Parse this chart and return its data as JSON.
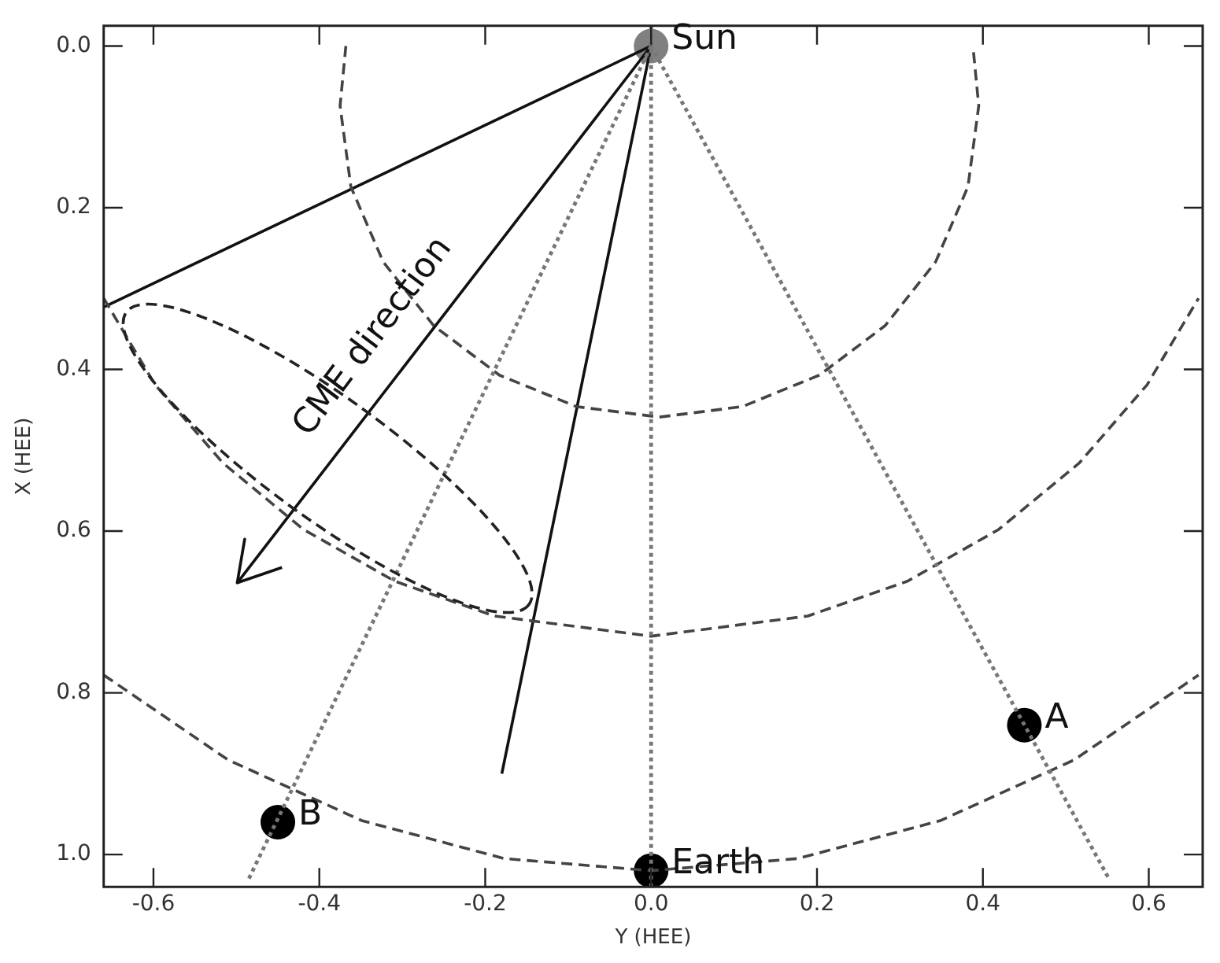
{
  "chart_data": {
    "type": "scatter",
    "xlabel": "Y (HEE)",
    "ylabel": "X (HEE)",
    "xlim": [
      -0.66,
      0.665
    ],
    "ylim": [
      1.04,
      -0.025
    ],
    "xticks": [
      -0.6,
      -0.4,
      -0.2,
      {
        "value": 0,
        "label": "0.0"
      },
      0.2,
      0.4,
      0.6
    ],
    "yticks": [
      {
        "value": 0,
        "label": "0.0"
      },
      0.2,
      0.4,
      0.6,
      0.8,
      {
        "value": 1,
        "label": "1.0"
      }
    ],
    "grid": false,
    "ref_lines": [
      {
        "axis": "x",
        "value": 0,
        "color": "#777777",
        "line_style": "dotted"
      }
    ],
    "legend": false,
    "marker": "circle",
    "annotations": [
      "CME direction"
    ],
    "series": [
      {
        "type": "line",
        "color": "#777777",
        "line_style": "dotted",
        "marker": "none",
        "x": [
          0,
          0.552
        ],
        "values": [
          0,
          1.03
        ]
      },
      {
        "type": "line",
        "color": "#777777",
        "line_style": "dotted",
        "marker": "none",
        "x": [
          0,
          -0.485
        ],
        "values": [
          0,
          1.03
        ]
      },
      {
        "type": "line",
        "color": "#444444",
        "line_style": "dashed",
        "marker": "none",
        "x": [
          -0.368,
          -0.375,
          -0.362,
          -0.323,
          -0.262,
          -0.183,
          -0.09,
          0.01,
          0.11,
          0.203,
          0.282,
          0.343,
          0.382,
          0.395,
          0.388
        ],
        "values": [
          0,
          0.074,
          0.174,
          0.267,
          0.346,
          0.407,
          0.446,
          0.459,
          0.446,
          0.407,
          0.346,
          0.267,
          0.174,
          0.074,
          0
        ]
      },
      {
        "type": "line",
        "color": "#444444",
        "line_style": "dashed",
        "marker": "none",
        "x": [
          -0.66,
          -0.598,
          -0.516,
          -0.419,
          -0.309,
          -0.189,
          0,
          0.189,
          0.309,
          0.419,
          0.516,
          0.598,
          0.66
        ],
        "values": [
          0.312,
          0.419,
          0.516,
          0.598,
          0.662,
          0.705,
          0.73,
          0.705,
          0.662,
          0.598,
          0.516,
          0.419,
          0.312
        ]
      },
      {
        "type": "line",
        "color": "#444444",
        "line_style": "dashed",
        "marker": "none",
        "x": [
          -0.66,
          -0.51,
          -0.349,
          -0.177,
          0,
          0.177,
          0.349,
          0.51,
          0.66
        ],
        "values": [
          0.778,
          0.883,
          0.958,
          1.005,
          1.02,
          1.005,
          0.958,
          0.883,
          0.778
        ]
      },
      {
        "type": "line",
        "color": "#111111",
        "line_style": "solid",
        "marker": "none",
        "x": [
          0,
          -0.66
        ],
        "values": [
          0,
          0.323
        ]
      },
      {
        "type": "line",
        "color": "#111111",
        "line_style": "solid",
        "marker": "none",
        "x": [
          0,
          -0.18
        ],
        "values": [
          0,
          0.9
        ]
      },
      {
        "type": "line",
        "color": "#111111",
        "line_style": "solid",
        "marker": "none",
        "x": [
          0,
          -0.499,
          -0.49,
          -0.499,
          -0.445
        ],
        "values": [
          0,
          0.664,
          0.61,
          0.664,
          0.645
        ]
      },
      {
        "name": "Sun",
        "color": "#808080",
        "x": [
          0
        ],
        "values": [
          0
        ]
      },
      {
        "name": "Earth",
        "color": "#000000",
        "x": [
          0
        ],
        "values": [
          1.02
        ]
      },
      {
        "name": "A",
        "color": "#000000",
        "x": [
          0.45
        ],
        "values": [
          0.84
        ]
      },
      {
        "name": "B",
        "color": "#000000",
        "x": [
          -0.45
        ],
        "values": [
          0.96
        ]
      }
    ]
  }
}
